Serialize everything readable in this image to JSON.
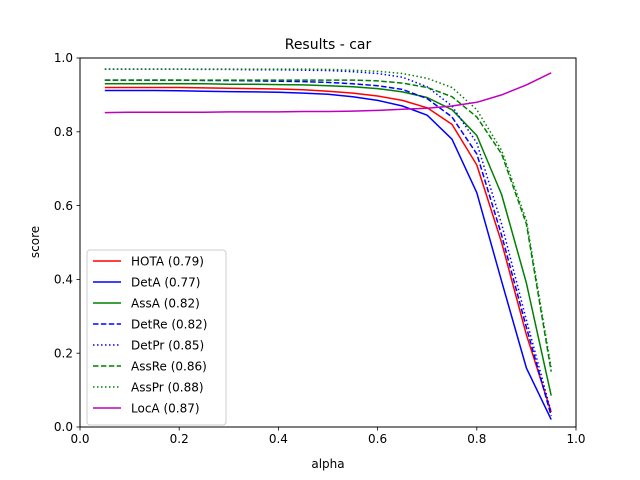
{
  "chart_data": {
    "type": "line",
    "title": "Results - car",
    "xlabel": "alpha",
    "ylabel": "score",
    "xlim": [
      0.0,
      1.0
    ],
    "ylim": [
      0.0,
      1.0
    ],
    "xticks": [
      0.0,
      0.2,
      0.4,
      0.6,
      0.8,
      1.0
    ],
    "yticks": [
      0.0,
      0.2,
      0.4,
      0.6,
      0.8,
      1.0
    ],
    "xtick_labels": [
      "0.0",
      "0.2",
      "0.4",
      "0.6",
      "0.8",
      "1.0"
    ],
    "ytick_labels": [
      "0.0",
      "0.2",
      "0.4",
      "0.6",
      "0.8",
      "1.0"
    ],
    "grid": false,
    "legend_position": "lower-left",
    "x": [
      0.05,
      0.1,
      0.15,
      0.2,
      0.25,
      0.3,
      0.35,
      0.4,
      0.45,
      0.5,
      0.55,
      0.6,
      0.65,
      0.7,
      0.75,
      0.8,
      0.85,
      0.9,
      0.95
    ],
    "series": [
      {
        "name": "HOTA (0.79)",
        "color": "#ff0000",
        "style": "solid",
        "values": [
          0.92,
          0.92,
          0.92,
          0.92,
          0.919,
          0.918,
          0.917,
          0.916,
          0.914,
          0.91,
          0.905,
          0.897,
          0.885,
          0.865,
          0.82,
          0.71,
          0.5,
          0.25,
          0.04
        ]
      },
      {
        "name": "DetA (0.77)",
        "color": "#0000ff",
        "style": "solid",
        "values": [
          0.912,
          0.912,
          0.912,
          0.911,
          0.91,
          0.909,
          0.908,
          0.907,
          0.905,
          0.902,
          0.895,
          0.885,
          0.87,
          0.845,
          0.78,
          0.635,
          0.395,
          0.16,
          0.02
        ]
      },
      {
        "name": "AssA (0.82)",
        "color": "#008000",
        "style": "solid",
        "values": [
          0.93,
          0.93,
          0.93,
          0.93,
          0.93,
          0.929,
          0.929,
          0.928,
          0.927,
          0.925,
          0.922,
          0.917,
          0.908,
          0.893,
          0.86,
          0.79,
          0.63,
          0.39,
          0.085
        ]
      },
      {
        "name": "DetRe (0.82)",
        "color": "#0000ff",
        "style": "dashed",
        "values": [
          0.94,
          0.94,
          0.94,
          0.94,
          0.939,
          0.939,
          0.938,
          0.937,
          0.936,
          0.934,
          0.93,
          0.925,
          0.915,
          0.89,
          0.84,
          0.74,
          0.52,
          0.27,
          0.03
        ]
      },
      {
        "name": "DetPr (0.85)",
        "color": "#0000ff",
        "style": "dotted",
        "values": [
          0.97,
          0.97,
          0.97,
          0.97,
          0.969,
          0.969,
          0.968,
          0.968,
          0.967,
          0.966,
          0.963,
          0.958,
          0.948,
          0.922,
          0.87,
          0.77,
          0.55,
          0.29,
          0.04
        ]
      },
      {
        "name": "AssRe (0.86)",
        "color": "#008000",
        "style": "dashed",
        "values": [
          0.94,
          0.94,
          0.94,
          0.94,
          0.94,
          0.94,
          0.94,
          0.94,
          0.94,
          0.94,
          0.94,
          0.938,
          0.932,
          0.92,
          0.895,
          0.84,
          0.74,
          0.55,
          0.15
        ]
      },
      {
        "name": "AssPr (0.88)",
        "color": "#008000",
        "style": "dotted",
        "values": [
          0.97,
          0.97,
          0.97,
          0.97,
          0.97,
          0.97,
          0.97,
          0.97,
          0.97,
          0.969,
          0.967,
          0.964,
          0.958,
          0.945,
          0.92,
          0.86,
          0.75,
          0.56,
          0.16
        ]
      },
      {
        "name": "LocA (0.87)",
        "color": "#bf00bf",
        "style": "solid",
        "values": [
          0.852,
          0.853,
          0.853,
          0.853,
          0.853,
          0.854,
          0.854,
          0.854,
          0.855,
          0.855,
          0.856,
          0.858,
          0.861,
          0.864,
          0.87,
          0.88,
          0.9,
          0.927,
          0.96
        ]
      }
    ]
  }
}
